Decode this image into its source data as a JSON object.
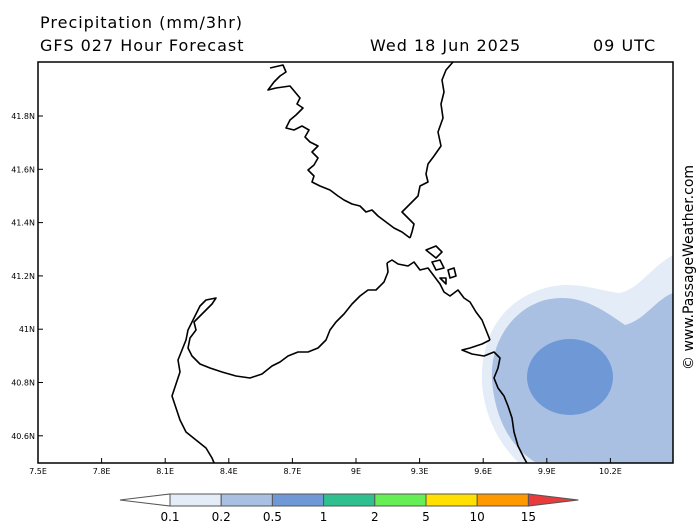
{
  "header": {
    "title": "Precipitation (mm/3hr)",
    "subtitle": "GFS 027 Hour Forecast",
    "date": "Wed 18 Jun 2025",
    "time": "09 UTC"
  },
  "credit": "© www.PassageWeather.com",
  "axes": {
    "lon_ticks": [
      "7.5E",
      "7.8E",
      "8.1E",
      "8.4E",
      "8.7E",
      "9E",
      "9.3E",
      "9.6E",
      "9.9E",
      "10.2E"
    ],
    "lat_ticks": [
      "41.8N",
      "41.6N",
      "41.4N",
      "41.2N",
      "41N",
      "40.8N",
      "40.6N"
    ]
  },
  "legend": {
    "labels": [
      "0.1",
      "0.2",
      "0.5",
      "1",
      "2",
      "5",
      "10",
      "15"
    ],
    "colors": [
      "#ffffff",
      "#e4ecf7",
      "#a9c0e2",
      "#6f98d6",
      "#2ec08f",
      "#66ee55",
      "#ffe000",
      "#ff9900",
      "#e83b3b"
    ]
  },
  "precip_colors": {
    "light": "#e4ecf7",
    "medium": "#a9c0e2",
    "heavy": "#6f98d6"
  }
}
